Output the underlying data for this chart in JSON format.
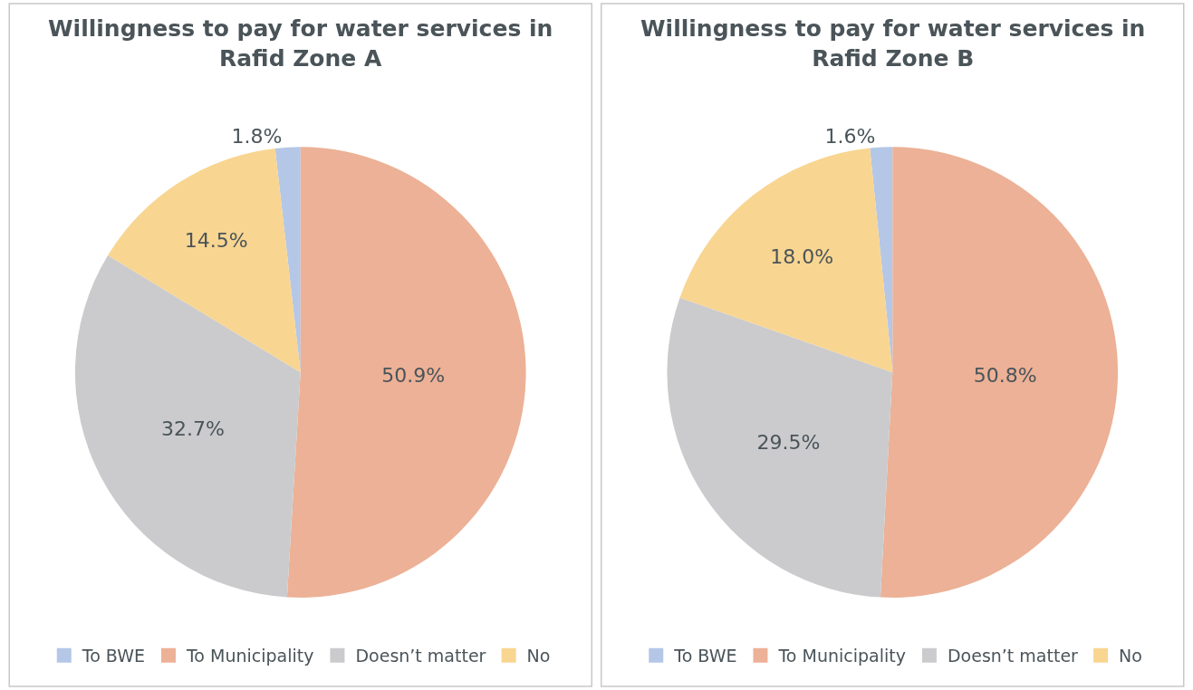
{
  "chart_data": [
    {
      "type": "pie",
      "title": "Willingness to pay for water services in Rafid Zone A",
      "categories": [
        "To BWE",
        "To Municipality",
        "Doesn’t matter",
        "No"
      ],
      "values": [
        1.8,
        50.9,
        32.7,
        14.5
      ],
      "value_labels": [
        "1.8%",
        "50.9%",
        "32.7%",
        "14.5%"
      ],
      "colors": [
        "#b4c7e7",
        "#ecb196",
        "#cbcbcd",
        "#f8d591"
      ],
      "legend": "bottom"
    },
    {
      "type": "pie",
      "title": "Willingness to pay for water services in Rafid Zone B",
      "categories": [
        "To BWE",
        "To Municipality",
        "Doesn’t matter",
        "No"
      ],
      "values": [
        1.6,
        50.8,
        29.5,
        18.0
      ],
      "value_labels": [
        "1.6%",
        "50.8%",
        "29.5%",
        "18.0%"
      ],
      "colors": [
        "#b4c7e7",
        "#ecb196",
        "#cbcbcd",
        "#f8d591"
      ],
      "legend": "bottom"
    }
  ]
}
